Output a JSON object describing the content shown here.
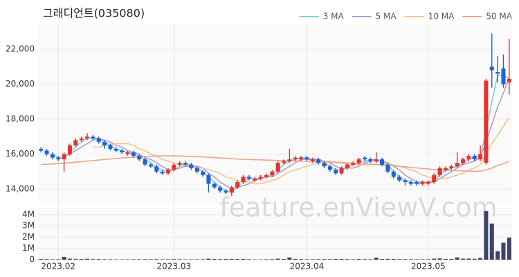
{
  "chart_data": [
    {
      "type": "candlestick",
      "title": "그래디언트(035080)",
      "watermark": "feature.enViewV.com",
      "up_color": "#e8312f",
      "down_color": "#1e64d6",
      "grid": true,
      "legend": "top-right",
      "ylim": [
        13130,
        23430
      ],
      "yticks": [
        {
          "value": 14000,
          "label": "14,000"
        },
        {
          "value": 16000,
          "label": "16,000"
        },
        {
          "value": 18000,
          "label": "18,000"
        },
        {
          "value": 20000,
          "label": "20,000"
        },
        {
          "value": 22000,
          "label": "22,000"
        }
      ],
      "ohlc": [
        [
          16300,
          16400,
          16100,
          16200
        ],
        [
          16200,
          16300,
          15900,
          16000
        ],
        [
          16000,
          16100,
          15700,
          15800
        ],
        [
          15800,
          15900,
          15600,
          15700
        ],
        [
          15700,
          16100,
          15000,
          16000
        ],
        [
          16000,
          16600,
          15900,
          16500
        ],
        [
          16500,
          16900,
          16400,
          16800
        ],
        [
          16800,
          17000,
          16700,
          16900
        ],
        [
          16900,
          17200,
          16800,
          17000
        ],
        [
          17000,
          17100,
          16800,
          16900
        ],
        [
          16900,
          17000,
          16600,
          16700
        ],
        [
          16700,
          16800,
          16300,
          16500
        ],
        [
          16500,
          16600,
          16200,
          16300
        ],
        [
          16300,
          16400,
          16100,
          16200
        ],
        [
          16200,
          16300,
          16000,
          16100
        ],
        [
          16000,
          16200,
          15900,
          16100
        ],
        [
          16100,
          16200,
          15800,
          15900
        ],
        [
          15900,
          16000,
          15600,
          15700
        ],
        [
          15700,
          15800,
          15300,
          15400
        ],
        [
          15400,
          15500,
          15200,
          15300
        ],
        [
          15300,
          15400,
          14900,
          15000
        ],
        [
          15000,
          15100,
          14800,
          14900
        ],
        [
          14900,
          15200,
          14800,
          15100
        ],
        [
          15100,
          15500,
          15000,
          15400
        ],
        [
          15400,
          15600,
          15300,
          15500
        ],
        [
          15500,
          15600,
          15300,
          15400
        ],
        [
          15400,
          15500,
          15100,
          15200
        ],
        [
          15200,
          15300,
          14900,
          15000
        ],
        [
          15000,
          15100,
          14700,
          14800
        ],
        [
          14800,
          14900,
          13800,
          14300
        ],
        [
          14300,
          14400,
          14000,
          14100
        ],
        [
          14100,
          14200,
          13800,
          13900
        ],
        [
          13900,
          14000,
          13700,
          13800
        ],
        [
          13800,
          14200,
          13600,
          14100
        ],
        [
          14100,
          14500,
          14000,
          14400
        ],
        [
          14400,
          14800,
          14300,
          14700
        ],
        [
          14700,
          14800,
          14500,
          14600
        ],
        [
          14500,
          14700,
          14400,
          14600
        ],
        [
          14600,
          14800,
          14500,
          14700
        ],
        [
          14700,
          14900,
          14600,
          14800
        ],
        [
          14800,
          15100,
          14700,
          15000
        ],
        [
          15000,
          15600,
          14900,
          15500
        ],
        [
          15500,
          15700,
          15400,
          15600
        ],
        [
          15600,
          16300,
          15500,
          15700
        ],
        [
          15700,
          15900,
          15600,
          15800
        ],
        [
          15700,
          15900,
          15600,
          15800
        ],
        [
          15800,
          15900,
          15600,
          15700
        ],
        [
          15600,
          15800,
          15500,
          15700
        ],
        [
          15700,
          15800,
          15400,
          15500
        ],
        [
          15500,
          15600,
          15200,
          15300
        ],
        [
          15300,
          15400,
          15000,
          15100
        ],
        [
          15100,
          15200,
          14800,
          14900
        ],
        [
          14900,
          15300,
          14800,
          15200
        ],
        [
          15200,
          15500,
          15100,
          15400
        ],
        [
          15400,
          15600,
          15300,
          15500
        ],
        [
          15500,
          15800,
          15400,
          15700
        ],
        [
          15800,
          15900,
          15600,
          15700
        ],
        [
          15700,
          15800,
          15500,
          15600
        ],
        [
          15600,
          16100,
          15500,
          15700
        ],
        [
          15700,
          15800,
          15300,
          15400
        ],
        [
          15400,
          15500,
          14900,
          15000
        ],
        [
          15000,
          15100,
          14600,
          14700
        ],
        [
          14700,
          14800,
          14400,
          14500
        ],
        [
          14500,
          14600,
          14200,
          14400
        ],
        [
          14400,
          14500,
          14200,
          14300
        ],
        [
          14400,
          14500,
          14200,
          14300
        ],
        [
          14300,
          14500,
          14200,
          14400
        ],
        [
          14300,
          14500,
          14200,
          14400
        ],
        [
          14400,
          14900,
          14300,
          14800
        ],
        [
          14800,
          15300,
          14700,
          15200
        ],
        [
          15100,
          15300,
          15000,
          15200
        ],
        [
          15200,
          15400,
          15100,
          15300
        ],
        [
          15300,
          16100,
          15200,
          15500
        ],
        [
          15500,
          15800,
          15400,
          15700
        ],
        [
          15700,
          16000,
          15600,
          15900
        ],
        [
          15900,
          16000,
          15600,
          15700
        ],
        [
          15700,
          16500,
          15600,
          16000
        ],
        [
          15500,
          20300,
          15400,
          20200
        ],
        [
          21000,
          22900,
          19800,
          20800
        ],
        [
          20700,
          21600,
          20100,
          20600
        ],
        [
          20900,
          21700,
          19800,
          20000
        ],
        [
          20100,
          22600,
          19400,
          20300
        ]
      ],
      "series": [
        {
          "name": "3 MA",
          "color": "#7fd0cf",
          "values": [
            null,
            null,
            16000,
            15800,
            15800,
            16100,
            16400,
            16700,
            16900,
            16900,
            16900,
            16700,
            16500,
            16300,
            16200,
            16100,
            16000,
            15900,
            15700,
            15500,
            15200,
            15100,
            15000,
            15100,
            15300,
            15400,
            15400,
            15200,
            15000,
            14700,
            14400,
            14100,
            13900,
            13900,
            14100,
            14400,
            14600,
            14600,
            14600,
            14700,
            14800,
            15100,
            15400,
            15600,
            15700,
            15800,
            15800,
            15700,
            15600,
            15500,
            15300,
            15100,
            15100,
            15200,
            15400,
            15500,
            15600,
            15700,
            15700,
            15600,
            15400,
            15000,
            14700,
            14500,
            14400,
            14300,
            14300,
            14400,
            14500,
            14800,
            15100,
            15200,
            15300,
            15500,
            15700,
            15800,
            15900,
            17300,
            19000,
            20500,
            20500,
            20300
          ]
        },
        {
          "name": "5 MA",
          "color": "#b39cca",
          "values": [
            null,
            null,
            null,
            null,
            15900,
            16000,
            16200,
            16400,
            16600,
            16800,
            16900,
            16800,
            16700,
            16500,
            16400,
            16200,
            16100,
            16000,
            15800,
            15700,
            15500,
            15300,
            15100,
            15100,
            15200,
            15300,
            15300,
            15300,
            15200,
            14900,
            14700,
            14400,
            14200,
            14000,
            14100,
            14200,
            14300,
            14500,
            14600,
            14700,
            14700,
            14900,
            15100,
            15300,
            15500,
            15700,
            15700,
            15700,
            15700,
            15600,
            15500,
            15300,
            15200,
            15200,
            15200,
            15300,
            15500,
            15600,
            15600,
            15600,
            15500,
            15300,
            15100,
            14800,
            14600,
            14400,
            14400,
            14400,
            14400,
            14600,
            14800,
            15000,
            15200,
            15400,
            15500,
            15600,
            15800,
            16700,
            17700,
            18700,
            19500,
            20400
          ]
        },
        {
          "name": "10 MA",
          "color": "#f5c48e",
          "values": [
            null,
            null,
            null,
            null,
            null,
            null,
            null,
            null,
            null,
            16400,
            16400,
            16500,
            16500,
            16600,
            16600,
            16600,
            16500,
            16300,
            16200,
            16000,
            15900,
            15700,
            15600,
            15500,
            15400,
            15400,
            15300,
            15200,
            15200,
            15100,
            15000,
            14900,
            14700,
            14600,
            14500,
            14400,
            14400,
            14300,
            14300,
            14400,
            14500,
            14600,
            14800,
            15000,
            15100,
            15200,
            15300,
            15400,
            15500,
            15600,
            15600,
            15500,
            15500,
            15400,
            15400,
            15400,
            15400,
            15400,
            15400,
            15400,
            15400,
            15400,
            15300,
            15200,
            15100,
            15000,
            14800,
            14700,
            14600,
            14600,
            14600,
            14700,
            14800,
            14900,
            15100,
            15200,
            15400,
            16000,
            16600,
            17100,
            17600,
            18100
          ]
        },
        {
          "name": "50 MA",
          "color": "#f2a08a",
          "values": [
            15400,
            15420,
            15440,
            15460,
            15480,
            15510,
            15540,
            15570,
            15600,
            15630,
            15660,
            15690,
            15720,
            15750,
            15780,
            15800,
            15820,
            15840,
            15860,
            15880,
            15890,
            15900,
            15900,
            15900,
            15890,
            15880,
            15870,
            15860,
            15840,
            15820,
            15800,
            15780,
            15760,
            15740,
            15720,
            15700,
            15690,
            15680,
            15670,
            15660,
            15650,
            15640,
            15630,
            15620,
            15610,
            15600,
            15590,
            15580,
            15570,
            15560,
            15550,
            15540,
            15520,
            15500,
            15480,
            15460,
            15440,
            15420,
            15400,
            15380,
            15360,
            15330,
            15300,
            15270,
            15240,
            15210,
            15180,
            15150,
            15120,
            15100,
            15080,
            15060,
            15050,
            15040,
            15030,
            15020,
            15030,
            15100,
            15200,
            15350,
            15450,
            15600
          ]
        }
      ]
    },
    {
      "type": "bar",
      "color": "#3d4266",
      "ylim": [
        0,
        4600000
      ],
      "yticks": [
        0,
        {
          "value": 1000000,
          "label": "1M"
        },
        {
          "value": 2000000,
          "label": "2M"
        },
        {
          "value": 3000000,
          "label": "3M"
        },
        {
          "value": 4000000,
          "label": "4M"
        }
      ],
      "categories": [
        null,
        null,
        null,
        "2023.02",
        null,
        null,
        null,
        null,
        null,
        null,
        null,
        null,
        null,
        null,
        null,
        null,
        null,
        null,
        null,
        null,
        null,
        null,
        null,
        "2023.03",
        null,
        null,
        null,
        null,
        null,
        null,
        null,
        null,
        null,
        null,
        null,
        null,
        null,
        null,
        null,
        null,
        null,
        null,
        null,
        null,
        null,
        null,
        "2023.04",
        null,
        null,
        null,
        null,
        null,
        null,
        null,
        null,
        null,
        null,
        null,
        null,
        null,
        null,
        null,
        null,
        null,
        null,
        null,
        null,
        "2023.05",
        null,
        null,
        null,
        null,
        null,
        null,
        null,
        null,
        null,
        null,
        null,
        null,
        null,
        null
      ],
      "values": [
        60000,
        50000,
        40000,
        40000,
        250000,
        90000,
        70000,
        60000,
        80000,
        50000,
        50000,
        40000,
        40000,
        30000,
        30000,
        30000,
        40000,
        40000,
        50000,
        40000,
        50000,
        40000,
        40000,
        50000,
        40000,
        30000,
        30000,
        40000,
        40000,
        90000,
        60000,
        50000,
        60000,
        70000,
        60000,
        60000,
        40000,
        30000,
        30000,
        40000,
        50000,
        90000,
        60000,
        200000,
        70000,
        50000,
        40000,
        40000,
        50000,
        50000,
        50000,
        60000,
        60000,
        50000,
        40000,
        60000,
        50000,
        40000,
        180000,
        60000,
        70000,
        60000,
        50000,
        50000,
        40000,
        40000,
        40000,
        40000,
        90000,
        110000,
        60000,
        60000,
        200000,
        90000,
        100000,
        80000,
        150000,
        4300000,
        3200000,
        750000,
        1500000,
        1950000
      ]
    }
  ]
}
